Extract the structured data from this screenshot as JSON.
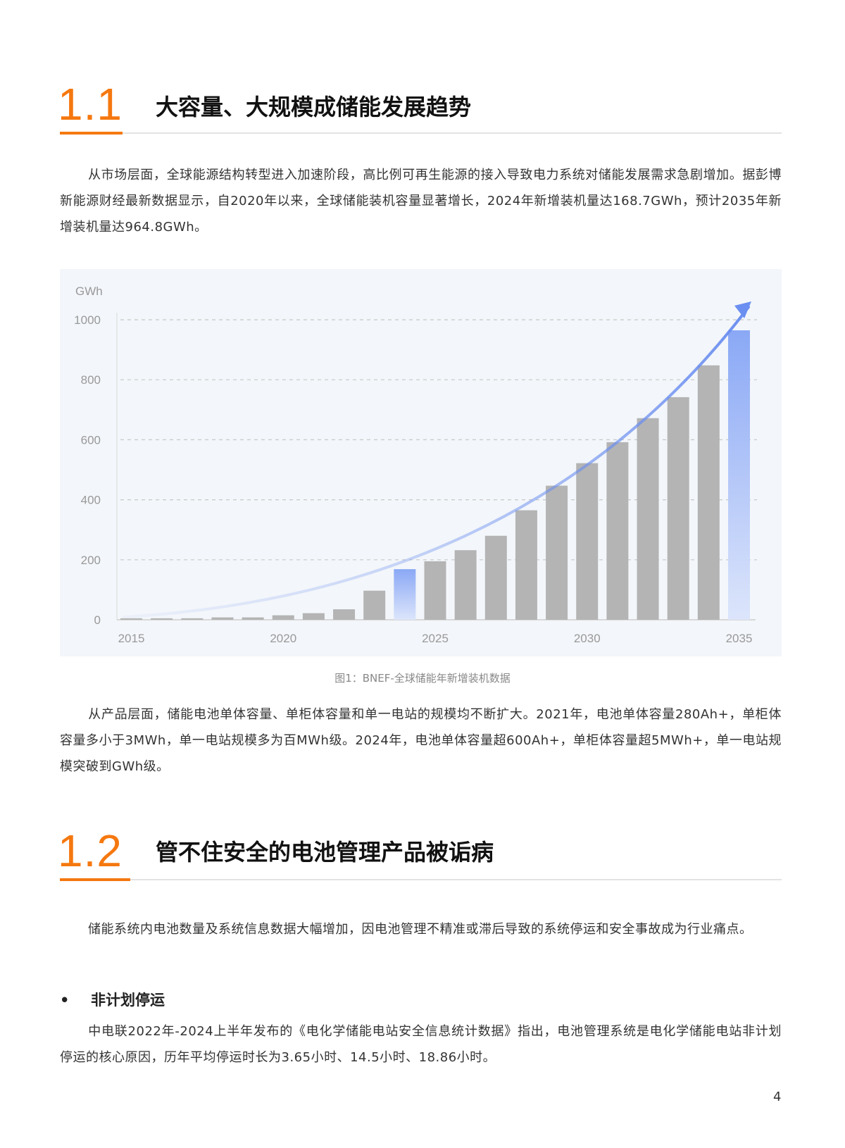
{
  "section1": {
    "number": "1.1",
    "title": "大容量、大规模成储能发展趋势",
    "paragraph1": "从市场层面，全球能源结构转型进入加速阶段，高比例可再生能源的接入导致电力系统对储能发展需求急剧增加。据彭博新能源财经最新数据显示，自2020年以来，全球储能装机容量显著增长，2024年新增装机量达168.7GWh，预计2035年新增装机量达964.8GWh。",
    "caption": "图1：BNEF-全球储能年新增装机数据",
    "paragraph2": "从产品层面，储能电池单体容量、单柜体容量和单一电站的规模均不断扩大。2021年，电池单体容量280Ah+，单柜体容量多小于3MWh，单一电站规模多为百MWh级。2024年，电池单体容量超600Ah+，单柜体容量超5MWh+，单一电站规模突破到GWh级。"
  },
  "chart_data": {
    "type": "bar",
    "ylabel": "GWh",
    "ylim": [
      0,
      1000
    ],
    "yticks": [
      "0",
      "200",
      "400",
      "600",
      "800",
      "1000"
    ],
    "xticks": [
      "2015",
      "2020",
      "2025",
      "2030",
      "2035"
    ],
    "grid": "horizontal-dashed",
    "categories": [
      2015,
      2016,
      2017,
      2018,
      2019,
      2020,
      2021,
      2022,
      2023,
      2024,
      2025,
      2026,
      2027,
      2028,
      2029,
      2030,
      2031,
      2032,
      2033,
      2034,
      2035
    ],
    "values": [
      5,
      5,
      5,
      8,
      8,
      15,
      22,
      35,
      97,
      168.7,
      195,
      232,
      280,
      365,
      447,
      522,
      592,
      672,
      742,
      848,
      964.8
    ],
    "highlighted": [
      2024,
      2035
    ],
    "trend_arrow": true,
    "colors": {
      "bar": "#b4b4b4",
      "highlight": "#8aa8f5",
      "arrow": "#6b8ff0",
      "grid": "#c8c8c8",
      "background": "#f3f6fa"
    }
  },
  "section2": {
    "number": "1.2",
    "title": "管不住安全的电池管理产品被诟病",
    "paragraph1": "储能系统内电池数量及系统信息数据大幅增加，因电池管理不精准或滞后导致的系统停运和安全事故成为行业痛点。",
    "bullet": "•",
    "bullet_title": "非计划停运",
    "paragraph2": "中电联2022年-2024上半年发布的《电化学储能电站安全信息统计数据》指出，电池管理系统是电化学储能电站非计划停运的核心原因，历年平均停运时长为3.65小时、14.5小时、18.86小时。"
  },
  "page_number": "4",
  "colors": {
    "accent": "#f5780f",
    "text": "#333333"
  }
}
